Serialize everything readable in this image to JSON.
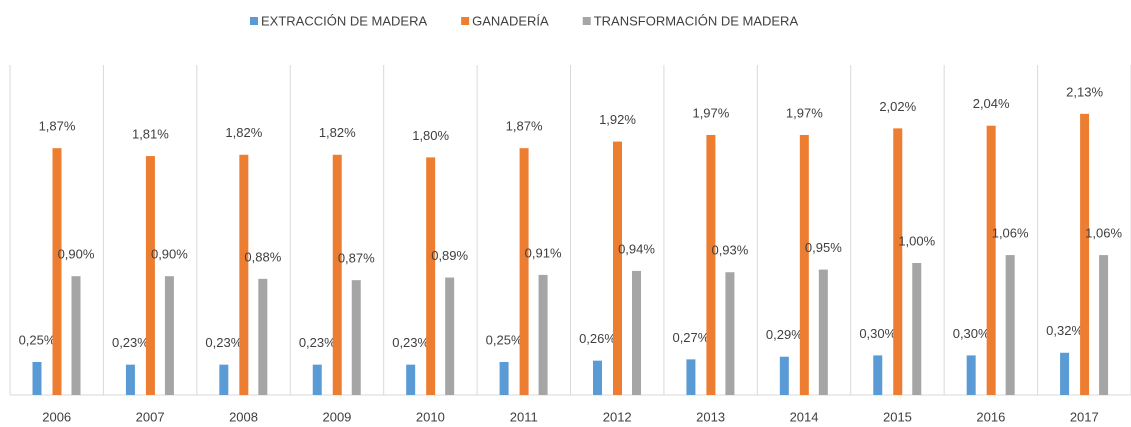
{
  "chart_data": {
    "type": "bar",
    "categories": [
      "2006",
      "2007",
      "2008",
      "2009",
      "2010",
      "2011",
      "2012",
      "2013",
      "2014",
      "2015",
      "2016",
      "2017"
    ],
    "series": [
      {
        "name": "EXTRACCIÓN DE MADERA",
        "color": "#5b9bd5",
        "values": [
          0.25,
          0.23,
          0.23,
          0.23,
          0.23,
          0.25,
          0.26,
          0.27,
          0.29,
          0.3,
          0.3,
          0.32
        ],
        "value_labels": [
          "0,25%",
          "0,23%",
          "0,23%",
          "0,23%",
          "0,23%",
          "0,25%",
          "0,26%",
          "0,27%",
          "0,29%",
          "0,30%",
          "0,30%",
          "0,32%"
        ]
      },
      {
        "name": "GANADERÍA",
        "color": "#ed7d31",
        "values": [
          1.87,
          1.81,
          1.82,
          1.82,
          1.8,
          1.87,
          1.92,
          1.97,
          1.97,
          2.02,
          2.04,
          2.13
        ],
        "value_labels": [
          "1,87%",
          "1,81%",
          "1,82%",
          "1,82%",
          "1,80%",
          "1,87%",
          "1,92%",
          "1,97%",
          "1,97%",
          "2,02%",
          "2,04%",
          "2,13%"
        ]
      },
      {
        "name": "TRANSFORMACIÓN DE MADERA",
        "color": "#a5a5a5",
        "values": [
          0.9,
          0.9,
          0.88,
          0.87,
          0.89,
          0.91,
          0.94,
          0.93,
          0.95,
          1.0,
          1.06,
          1.06
        ],
        "value_labels": [
          "0,90%",
          "0,90%",
          "0,88%",
          "0,87%",
          "0,89%",
          "0,91%",
          "0,94%",
          "0,93%",
          "0,95%",
          "1,00%",
          "1,06%",
          "1,06%"
        ]
      }
    ],
    "ylim": [
      0,
      2.5
    ]
  }
}
